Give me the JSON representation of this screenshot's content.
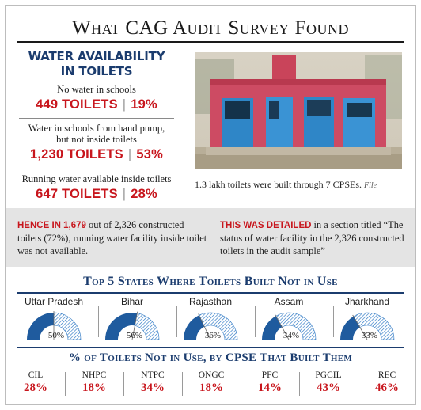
{
  "title": "What CAG Audit Survey Found",
  "water": {
    "heading_line1": "WATER AVAILABILITY",
    "heading_line2": "IN TOILETS",
    "stats": [
      {
        "label": "No water in schools",
        "count": "449 TOILETS",
        "pct": "19%"
      },
      {
        "label": "Water in schools from hand pump, but not inside toilets",
        "count": "1,230 TOILETS",
        "pct": "53%"
      },
      {
        "label": "Running water available inside toilets",
        "count": "647 TOILETS",
        "pct": "28%"
      }
    ]
  },
  "photo": {
    "caption": "1.3 lakh toilets were built through 7 CPSEs.",
    "credit": "File"
  },
  "note_left": {
    "highlight": "Hence in 1,679",
    "text": " out of 2,326 constructed toilets (72%), running water facility inside toilet was not available."
  },
  "note_right": {
    "highlight": "This was detailed",
    "text": " in a section titled “The status of water facility in the 2,326 constructed toilets in the audit sample”"
  },
  "colors": {
    "blue": "#1b3c6e",
    "red": "#c8161d",
    "gauge_fill": "#1f5b9e",
    "gauge_hatch": "#2d78c4",
    "band": "#e4e4e4"
  },
  "chart_data": [
    {
      "type": "gauge",
      "title": "Top 5 States Where Toilets Built Not in Use",
      "categories": [
        "Uttar Pradesh",
        "Bihar",
        "Rajasthan",
        "Assam",
        "Jharkhand"
      ],
      "values": [
        50,
        56,
        36,
        34,
        33
      ],
      "value_labels": [
        "50%",
        "56%",
        "36%",
        "34%",
        "33%"
      ],
      "unit": "%"
    },
    {
      "type": "table",
      "title": "% of Toilets Not in Use, by CPSE That Built Them",
      "categories": [
        "CIL",
        "NHPC",
        "NTPC",
        "ONGC",
        "PFC",
        "PGCIL",
        "REC"
      ],
      "values": [
        28,
        18,
        34,
        18,
        14,
        43,
        46
      ],
      "value_labels": [
        "28%",
        "18%",
        "34%",
        "18%",
        "14%",
        "43%",
        "46%"
      ],
      "unit": "%"
    }
  ]
}
